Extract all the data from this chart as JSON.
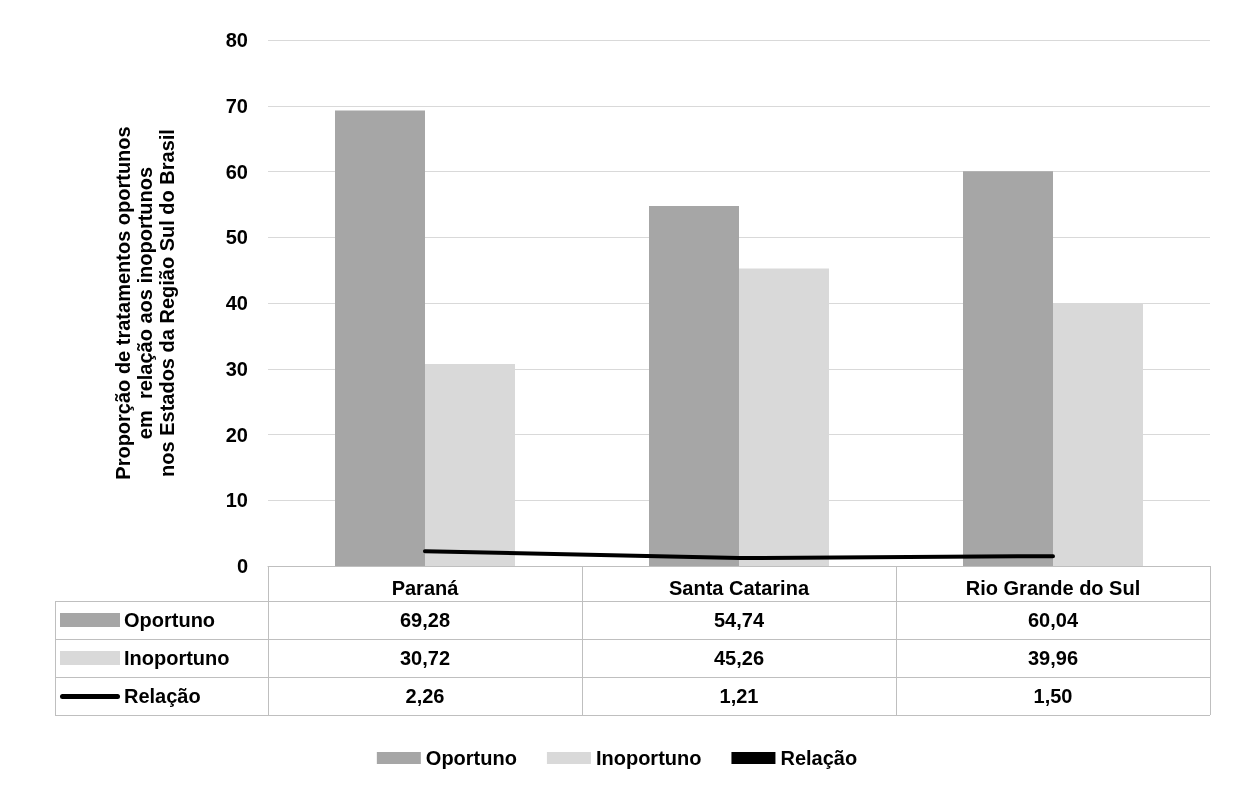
{
  "chart_data": {
    "type": "bar",
    "ylabel": "Proporção de tratamentos oportunos\nem  relação aos inoportunos\nnos Estados da Região Sul do Brasil",
    "categories": [
      "Paraná",
      "Santa Catarina",
      "Rio Grande do Sul"
    ],
    "series": [
      {
        "name": "Oportuno",
        "color": "#a6a6a6",
        "values": [
          69.28,
          54.74,
          60.04
        ],
        "value_labels": [
          "69,28",
          "54,74",
          "60,04"
        ]
      },
      {
        "name": "Inoportuno",
        "color": "#d9d9d9",
        "values": [
          30.72,
          45.26,
          39.96
        ],
        "value_labels": [
          "30,72",
          "45,26",
          "39,96"
        ]
      },
      {
        "name": "Relação",
        "type": "line",
        "color": "#000000",
        "values": [
          2.26,
          1.21,
          1.5
        ],
        "value_labels": [
          "2,26",
          "1,21",
          "1,50"
        ],
        "marker": "none"
      }
    ],
    "ylim": [
      0,
      80
    ],
    "yticks": [
      0,
      10,
      20,
      30,
      40,
      50,
      60,
      70,
      80
    ],
    "grid": "y",
    "legend": "bottom"
  }
}
